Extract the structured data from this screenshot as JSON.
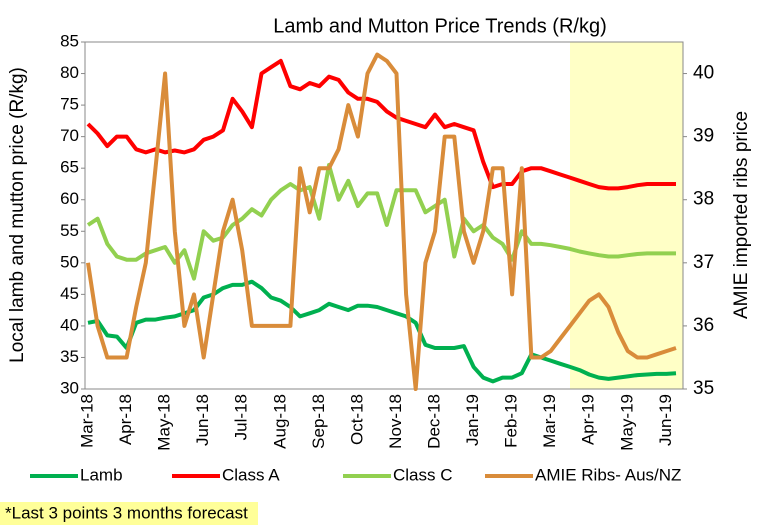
{
  "chart_data": {
    "type": "line",
    "title": "Lamb and Mutton Price Trends (R/kg)",
    "y_label": "Local lamb and mutton price (R/kg)",
    "y2_label": "AMIE imported ribs price",
    "note": "*Last 3 points 3 months forecast",
    "categories": [
      "Mar-18",
      null,
      null,
      null,
      "Apr-18",
      null,
      null,
      null,
      "May-18",
      null,
      null,
      null,
      "Jun-18",
      null,
      null,
      null,
      "Jul-18",
      null,
      null,
      null,
      "Aug-18",
      null,
      null,
      null,
      "Sep-18",
      null,
      null,
      null,
      "Oct-18",
      null,
      null,
      null,
      "Nov-18",
      null,
      null,
      null,
      "Dec-18",
      null,
      null,
      null,
      "Jan-19",
      null,
      null,
      null,
      "Feb-19",
      null,
      null,
      null,
      "Mar-19",
      null,
      null,
      null,
      "Apr-19",
      null,
      null,
      null,
      "May-19",
      null,
      null,
      null,
      "Jun-19",
      null
    ],
    "series": [
      {
        "name": "Lamb",
        "color": "#00b050",
        "values": [
          40.5,
          40.8,
          38.5,
          38.3,
          36.5,
          40.5,
          41,
          41,
          41.3,
          41.5,
          42,
          42.5,
          44.5,
          45,
          46,
          46.5,
          46.5,
          47,
          46,
          44.5,
          44,
          43,
          41.5,
          42,
          42.5,
          43.5,
          43,
          42.5,
          43.2,
          43.2,
          43,
          42.5,
          42,
          41.5,
          40.5,
          37,
          36.5,
          36.5,
          36.5,
          36.8,
          33.5,
          31.8,
          31.2,
          31.8,
          31.8,
          32.5,
          35.5,
          35,
          34.5,
          34,
          33.5,
          33,
          32.3,
          31.8,
          31.6,
          31.8,
          32,
          32.2,
          32.3,
          32.4,
          32.4,
          32.5
        ]
      },
      {
        "name": "Class A",
        "color": "#ff0000",
        "values": [
          72,
          70.5,
          68.5,
          70,
          70,
          68,
          67.5,
          68,
          67.5,
          67.8,
          67.5,
          68,
          69.5,
          70,
          71,
          76,
          74,
          71.5,
          80,
          81,
          82,
          78,
          77.5,
          78.5,
          78,
          79.5,
          79,
          77,
          76,
          76,
          75.5,
          74,
          73,
          72.5,
          72,
          71.5,
          73.5,
          71.5,
          72,
          71.5,
          71,
          66,
          62,
          62.5,
          62.5,
          64.5,
          65,
          65,
          64.5,
          64,
          63.5,
          63,
          62.5,
          62,
          61.8,
          61.8,
          62,
          62.3,
          62.5,
          62.5,
          62.5,
          62.5
        ]
      },
      {
        "name": "Class C",
        "color": "#92d050",
        "values": [
          56,
          57,
          53,
          51,
          50.5,
          50.5,
          51.5,
          52,
          52.5,
          50,
          52,
          47.5,
          55,
          53.5,
          54,
          56,
          57,
          58.5,
          57.5,
          60,
          61.5,
          62.5,
          61.5,
          62,
          57,
          65.5,
          60,
          63,
          59,
          61,
          61,
          56,
          61.5,
          61.5,
          61.5,
          58,
          59,
          60,
          51,
          57,
          55,
          56,
          54,
          53,
          50.5,
          55,
          53,
          53,
          52.8,
          52.5,
          52.2,
          51.8,
          51.5,
          51.2,
          51,
          51,
          51.2,
          51.4,
          51.5,
          51.5,
          51.5,
          51.5
        ]
      },
      {
        "name": "AMIE Ribs- Aus/NZ",
        "color": "#d98c3a",
        "axis": "y2",
        "values": [
          37,
          36,
          35.5,
          35.5,
          35.5,
          36.3,
          37,
          38.5,
          40,
          37.5,
          36,
          36.5,
          35.5,
          36.5,
          37.5,
          38,
          37.2,
          36,
          36,
          36,
          36,
          36,
          38.5,
          37.8,
          38.5,
          38.5,
          38.8,
          39.5,
          39,
          40,
          40.3,
          40.2,
          40,
          36.5,
          35,
          37,
          37.5,
          39,
          39,
          37.5,
          37,
          37.5,
          38.5,
          38.5,
          36.5,
          38.5,
          35.5,
          35.5,
          35.6,
          35.8,
          36,
          36.2,
          36.4,
          36.5,
          36.3,
          35.9,
          35.6,
          35.5,
          35.5,
          35.55,
          35.6,
          35.65
        ]
      }
    ],
    "ylim": [
      30,
      85
    ],
    "yticks": [
      30,
      35,
      40,
      45,
      50,
      55,
      60,
      65,
      70,
      75,
      80,
      85
    ],
    "y2lim": [
      35,
      40.5
    ],
    "y2ticks": [
      35,
      36,
      37,
      38,
      39,
      40
    ],
    "grid": false,
    "legend": "bottom"
  }
}
